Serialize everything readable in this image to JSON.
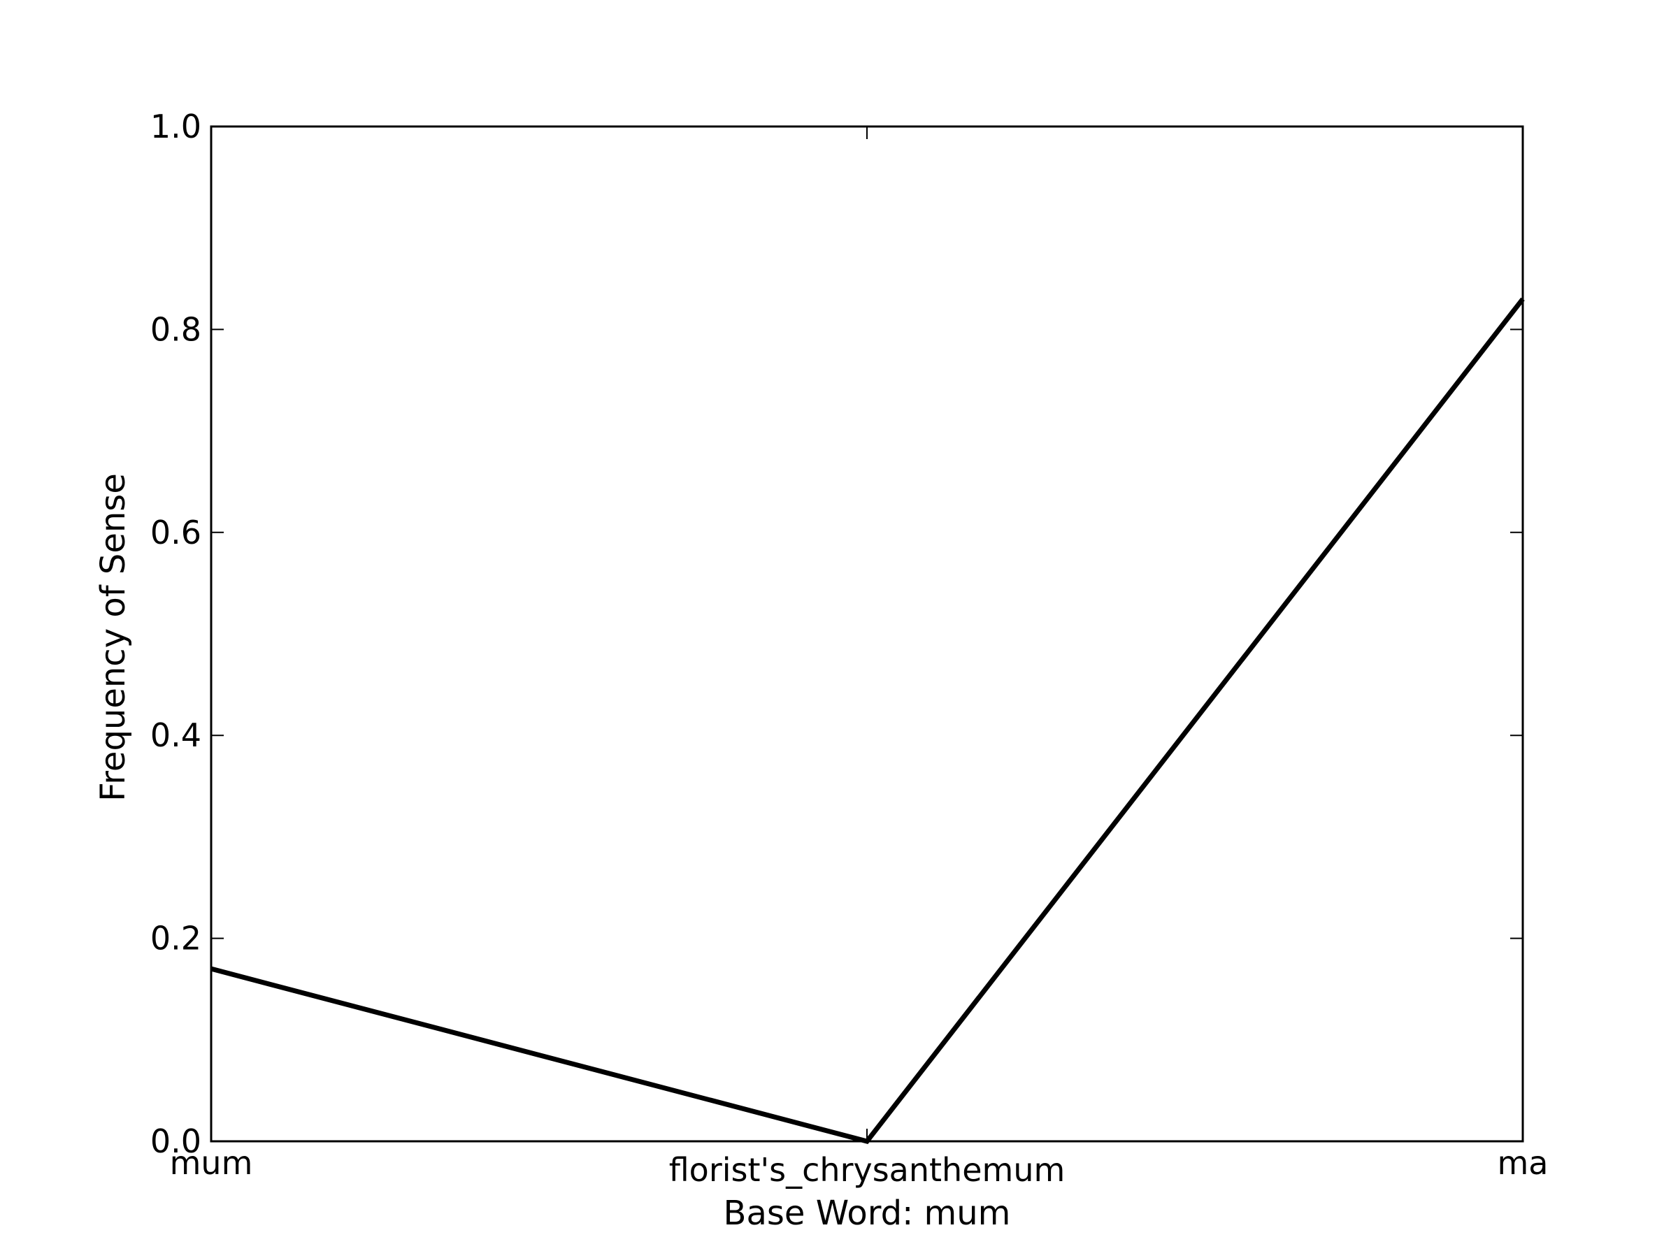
{
  "chart_data": {
    "type": "line",
    "title": "",
    "xlabel": "Base Word: mum",
    "ylabel": "Frequency of Sense",
    "categories": [
      "mum",
      "florist's_chrysanthemum",
      "ma"
    ],
    "series": [
      {
        "values": [
          0.17,
          0.0,
          0.83
        ],
        "color": "#000000"
      }
    ],
    "ylim": [
      0.0,
      1.0
    ],
    "yticks": [
      "0.0",
      "0.2",
      "0.4",
      "0.6",
      "0.8",
      "1.0"
    ],
    "grid": false,
    "legend": "none"
  }
}
